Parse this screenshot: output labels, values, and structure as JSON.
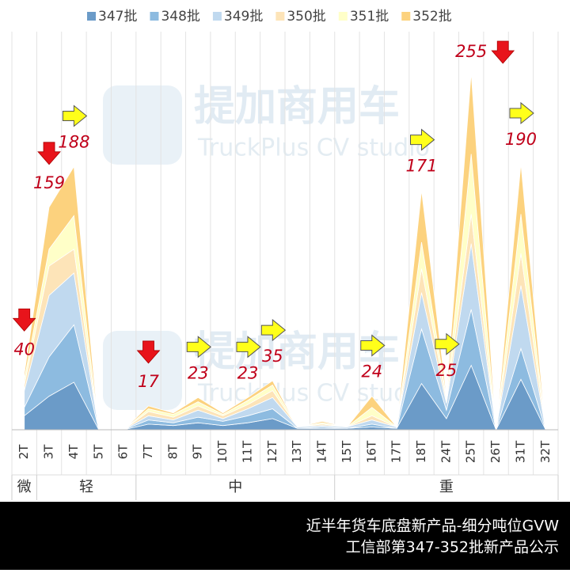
{
  "chart_data": {
    "type": "stacked-area",
    "categories": [
      "2T",
      "3T",
      "4T",
      "5T",
      "6T",
      "7T",
      "8T",
      "9T",
      "10T",
      "11T",
      "12T",
      "13T",
      "14T",
      "15T",
      "16T",
      "17T",
      "18T",
      "24T",
      "25T",
      "26T",
      "31T",
      "32T"
    ],
    "series": [
      {
        "name": "347批",
        "color": "#6b9bc8",
        "values": [
          10,
          24,
          34,
          0,
          0,
          4,
          3,
          5,
          3,
          5,
          8,
          1,
          1,
          1,
          2,
          1,
          33,
          8,
          46,
          0,
          36,
          0
        ]
      },
      {
        "name": "348批",
        "color": "#8dbbe0",
        "values": [
          6,
          28,
          41,
          0,
          0,
          3,
          2,
          4,
          3,
          5,
          7,
          0,
          1,
          0,
          2,
          0,
          39,
          6,
          40,
          0,
          22,
          0
        ]
      },
      {
        "name": "349批",
        "color": "#c0d9ef",
        "values": [
          12,
          44,
          37,
          0,
          0,
          3,
          2,
          5,
          2,
          5,
          8,
          1,
          1,
          1,
          3,
          1,
          26,
          5,
          47,
          0,
          45,
          0
        ]
      },
      {
        "name": "350批",
        "color": "#fde4b8",
        "values": [
          4,
          21,
          17,
          0,
          0,
          3,
          2,
          3,
          2,
          3,
          5,
          0,
          1,
          0,
          3,
          0,
          17,
          2,
          21,
          0,
          23,
          0
        ]
      },
      {
        "name": "351批",
        "color": "#ffffc8",
        "values": [
          4,
          12,
          24,
          0,
          0,
          2,
          2,
          3,
          1,
          3,
          4,
          0,
          1,
          0,
          6,
          0,
          19,
          2,
          43,
          0,
          28,
          0
        ]
      },
      {
        "name": "352批",
        "color": "#fcd27e",
        "values": [
          4,
          30,
          35,
          0,
          0,
          2,
          1,
          3,
          1,
          2,
          3,
          0,
          1,
          0,
          8,
          0,
          37,
          2,
          58,
          0,
          36,
          0
        ]
      }
    ],
    "annotations": [
      {
        "category": "2T",
        "value": 40,
        "arrow": "down"
      },
      {
        "category": "3T",
        "value": 159,
        "arrow": "down"
      },
      {
        "category": "4T",
        "value": 188,
        "arrow": "right"
      },
      {
        "category": "7T",
        "value": 17,
        "arrow": "down"
      },
      {
        "category": "9T",
        "value": 23,
        "arrow": "right"
      },
      {
        "category": "11T",
        "value": 23,
        "arrow": "right"
      },
      {
        "category": "12T",
        "value": 35,
        "arrow": "right"
      },
      {
        "category": "16T",
        "value": 24,
        "arrow": "right"
      },
      {
        "category": "18T",
        "value": 171,
        "arrow": "right"
      },
      {
        "category": "24T",
        "value": 25,
        "arrow": "right"
      },
      {
        "category": "25T",
        "value": 255,
        "arrow": "down"
      },
      {
        "category": "31T",
        "value": 190,
        "arrow": "right"
      }
    ],
    "groups": [
      {
        "label": "微",
        "from": "2T",
        "to": "2T"
      },
      {
        "label": "轻",
        "from": "3T",
        "to": "6T"
      },
      {
        "label": "中",
        "from": "7T",
        "to": "14T"
      },
      {
        "label": "重",
        "from": "15T",
        "to": "32T"
      }
    ],
    "watermark": {
      "title": "提加商用车",
      "subtitle": "TruckPlus CV studio"
    },
    "footer": [
      "近半年货车底盘新产品-细分吨位GVW",
      "工信部第347-352批新产品公示"
    ],
    "grid": true
  }
}
